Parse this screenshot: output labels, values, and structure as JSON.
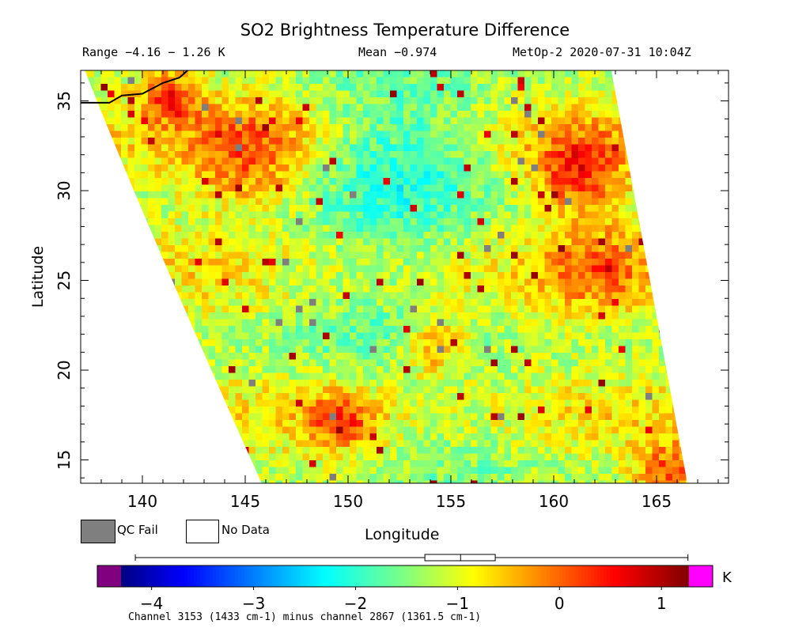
{
  "chart_data": {
    "type": "heatmap",
    "title": "SO2 Brightness Temperature Difference",
    "range_text": "Range -4.16 - 1.26 K",
    "mean_text": "Mean -0.974",
    "satellite_text": "MetOp-2 2020-07-31 10:04Z",
    "xlabel": "Longitude",
    "ylabel": "Latitude",
    "xlim": [
      137,
      168.5
    ],
    "ylim": [
      13.7,
      36.7
    ],
    "x_ticks": [
      140,
      145,
      150,
      155,
      160,
      165
    ],
    "y_ticks": [
      15,
      20,
      25,
      30,
      35
    ],
    "x_tick_labels": [
      "140",
      "145",
      "150",
      "155",
      "160",
      "165"
    ],
    "y_tick_labels": [
      "15",
      "20",
      "25",
      "30",
      "35"
    ],
    "value_range": [
      -4.16,
      1.26
    ],
    "mean": -0.974,
    "colorbar": {
      "min": -4.3,
      "max": 1.27,
      "ticks": [
        -4,
        -3,
        -2,
        -1,
        0,
        1
      ],
      "tick_labels": [
        "-4",
        "-3",
        "-2",
        "-1",
        "0",
        "1"
      ],
      "unit": "K",
      "under_color": "#800080",
      "over_color": "#ff00ff"
    },
    "boxplot": {
      "min": -4.16,
      "q1": -1.32,
      "median": -0.97,
      "q3": -0.63,
      "max": 1.26
    },
    "legend": [
      {
        "label": "QC Fail",
        "color": "#7f7f7f"
      },
      {
        "label": "No Data",
        "color": "#ffffff"
      }
    ],
    "footnote": "Channel 3153 (1433 cm-1) minus channel 2867 (1361.5 cm-1)",
    "swath_corners": {
      "top_left": [
        137.2,
        36.7
      ],
      "top_right": [
        162.8,
        36.7
      ],
      "bottom_right": [
        166.5,
        13.7
      ],
      "bottom_left": [
        145.8,
        13.7
      ]
    },
    "coastline": [
      [
        137.0,
        34.9
      ],
      [
        138.4,
        34.9
      ],
      [
        139.0,
        35.3
      ],
      [
        140.0,
        35.4
      ],
      [
        141.0,
        36.0
      ],
      [
        141.8,
        36.3
      ],
      [
        142.2,
        36.7
      ]
    ],
    "hotspots": [
      {
        "lon": 161.0,
        "lat": 31.2,
        "r": 2.3,
        "v": 0.9
      },
      {
        "lon": 141.2,
        "lat": 35.5,
        "r": 1.4,
        "v": 0.7
      },
      {
        "lon": 145.0,
        "lat": 32.0,
        "r": 3.0,
        "v": 0.3
      },
      {
        "lon": 152.5,
        "lat": 32.5,
        "r": 4.5,
        "v": -2.3
      },
      {
        "lon": 151.0,
        "lat": 24.0,
        "r": 5.0,
        "v": -1.6
      },
      {
        "lon": 149.5,
        "lat": 17.5,
        "r": 1.6,
        "v": 0.6
      },
      {
        "lon": 154.0,
        "lat": 21.5,
        "r": 1.5,
        "v": 0.5
      },
      {
        "lon": 165.5,
        "lat": 14.5,
        "r": 1.6,
        "v": 0.6
      },
      {
        "lon": 162.0,
        "lat": 26.0,
        "r": 2.5,
        "v": 0.1
      },
      {
        "lon": 155.5,
        "lat": 16.0,
        "r": 4.0,
        "v": -1.5
      }
    ]
  }
}
